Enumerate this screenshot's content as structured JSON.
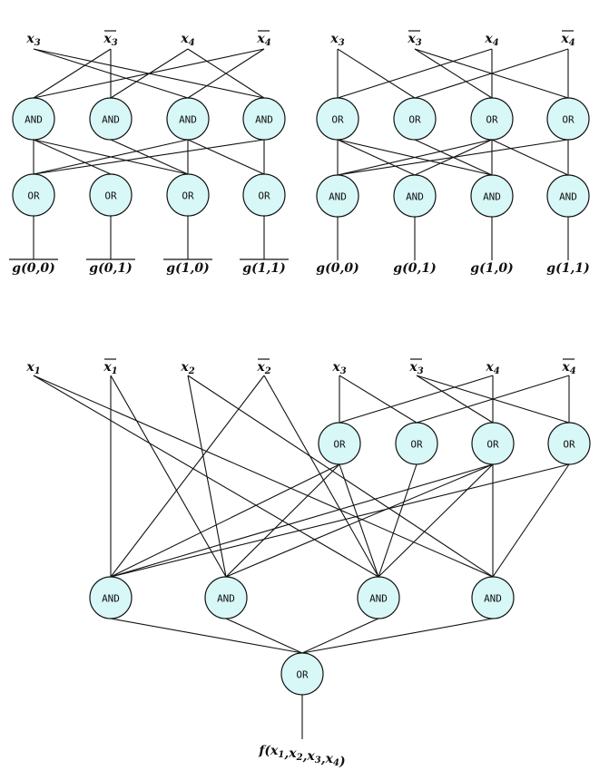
{
  "left_network": {
    "inputs": [
      {
        "label": "x",
        "sub": "3",
        "bar": false
      },
      {
        "label": "x",
        "sub": "3",
        "bar": true
      },
      {
        "label": "x",
        "sub": "4",
        "bar": false
      },
      {
        "label": "x",
        "sub": "4",
        "bar": true
      }
    ],
    "layer1": [
      "AND",
      "AND",
      "AND",
      "AND"
    ],
    "layer2": [
      "OR",
      "OR",
      "OR",
      "OR"
    ],
    "outputs": [
      {
        "label": "g(0,0)",
        "bar": true
      },
      {
        "label": "g(0,1)",
        "bar": true
      },
      {
        "label": "g(1,0)",
        "bar": true
      },
      {
        "label": "g(1,1)",
        "bar": true
      }
    ]
  },
  "right_network": {
    "inputs": [
      {
        "label": "x",
        "sub": "3",
        "bar": false
      },
      {
        "label": "x",
        "sub": "3",
        "bar": true
      },
      {
        "label": "x",
        "sub": "4",
        "bar": false
      },
      {
        "label": "x",
        "sub": "4",
        "bar": true
      }
    ],
    "layer1": [
      "OR",
      "OR",
      "OR",
      "OR"
    ],
    "layer2": [
      "AND",
      "AND",
      "AND",
      "AND"
    ],
    "outputs": [
      {
        "label": "g(0,0)",
        "bar": false
      },
      {
        "label": "g(0,1)",
        "bar": false
      },
      {
        "label": "g(1,0)",
        "bar": false
      },
      {
        "label": "g(1,1)",
        "bar": false
      }
    ]
  },
  "bottom_network": {
    "inputs": [
      {
        "label": "x",
        "sub": "1",
        "bar": false
      },
      {
        "label": "x",
        "sub": "1",
        "bar": true
      },
      {
        "label": "x",
        "sub": "2",
        "bar": false
      },
      {
        "label": "x",
        "sub": "2",
        "bar": true
      },
      {
        "label": "x",
        "sub": "3",
        "bar": false
      },
      {
        "label": "x",
        "sub": "3",
        "bar": true
      },
      {
        "label": "x",
        "sub": "4",
        "bar": false
      },
      {
        "label": "x",
        "sub": "4",
        "bar": true
      }
    ],
    "or_layer": [
      "OR",
      "OR",
      "OR",
      "OR"
    ],
    "and_layer": [
      "AND",
      "AND",
      "AND",
      "AND"
    ],
    "final_gate": "OR",
    "output": "f(x1,x2,x3,x4)"
  },
  "colors": {
    "gate_fill": "#d8f7f7",
    "stroke": "#111111"
  }
}
